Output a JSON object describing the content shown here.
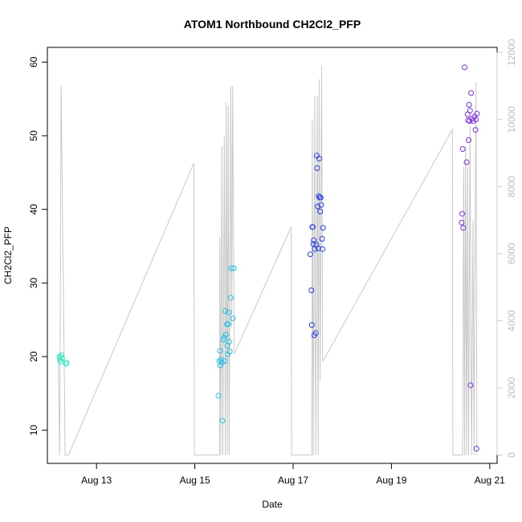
{
  "chart_data": {
    "type": "scatter",
    "title": "ATOM1 Northbound CH2Cl2_PFP",
    "xlabel": "Date",
    "ylabel": "CH2Cl2_PFP",
    "x_range_days": [
      12.0,
      21.15
    ],
    "xlim": [
      "Aug 12",
      "Aug 21"
    ],
    "x_ticks": [
      {
        "label": "Aug 13",
        "day": 13
      },
      {
        "label": "Aug 15",
        "day": 15
      },
      {
        "label": "Aug 17",
        "day": 17
      },
      {
        "label": "Aug 19",
        "day": 19
      },
      {
        "label": "Aug 21",
        "day": 21
      }
    ],
    "ylim": [
      5.5,
      62
    ],
    "y_ticks": [
      10,
      20,
      30,
      40,
      50,
      60
    ],
    "y2lim": [
      -250,
      12150
    ],
    "y2_ticks": [
      0,
      2000,
      4000,
      6000,
      8000,
      10000,
      12000
    ],
    "y2_color": "#c8c8c8",
    "grid": false,
    "legend": "none",
    "series": [
      {
        "marker": "open-circle",
        "color": "#2ee6c0",
        "points": [
          [
            12.25,
            20.0
          ],
          [
            12.26,
            19.6
          ],
          [
            12.27,
            19.3
          ],
          [
            12.29,
            20.2
          ],
          [
            12.3,
            19.8
          ],
          [
            12.38,
            19.0
          ],
          [
            12.39,
            19.2
          ]
        ]
      },
      {
        "marker": "open-circle",
        "color": "#22c0e6",
        "points": [
          [
            15.48,
            14.7
          ],
          [
            15.5,
            19.4
          ],
          [
            15.51,
            20.8
          ],
          [
            15.52,
            18.8
          ],
          [
            15.53,
            19.6
          ],
          [
            15.55,
            19.2
          ],
          [
            15.56,
            11.3
          ],
          [
            15.58,
            22.3
          ],
          [
            15.6,
            22.6
          ],
          [
            15.61,
            19.4
          ],
          [
            15.62,
            26.2
          ],
          [
            15.63,
            23.0
          ],
          [
            15.65,
            24.4
          ],
          [
            15.66,
            21.5
          ],
          [
            15.67,
            20.3
          ],
          [
            15.68,
            24.4
          ],
          [
            15.69,
            26.0
          ],
          [
            15.7,
            22.0
          ],
          [
            15.71,
            20.7
          ],
          [
            15.73,
            28.0
          ],
          [
            15.74,
            32.0
          ],
          [
            15.77,
            25.2
          ],
          [
            15.79,
            32.0
          ]
        ]
      },
      {
        "marker": "open-circle",
        "color": "#2a40e6",
        "points": [
          [
            17.35,
            33.9
          ],
          [
            17.37,
            29.0
          ],
          [
            17.38,
            24.3
          ],
          [
            17.39,
            37.6
          ],
          [
            17.4,
            37.6
          ],
          [
            17.41,
            35.3
          ],
          [
            17.42,
            35.8
          ],
          [
            17.43,
            22.9
          ],
          [
            17.44,
            34.6
          ],
          [
            17.46,
            23.2
          ],
          [
            17.47,
            35.2
          ],
          [
            17.48,
            47.3
          ],
          [
            17.49,
            45.6
          ],
          [
            17.5,
            40.4
          ],
          [
            17.51,
            34.7
          ],
          [
            17.52,
            41.8
          ],
          [
            17.53,
            46.9
          ],
          [
            17.54,
            41.6
          ],
          [
            17.55,
            39.7
          ],
          [
            17.56,
            41.6
          ],
          [
            17.57,
            40.6
          ],
          [
            17.59,
            36.0
          ],
          [
            17.6,
            34.6
          ],
          [
            17.61,
            37.5
          ]
        ]
      },
      {
        "marker": "open-circle",
        "color": "#7a2ee6",
        "points": [
          [
            20.43,
            38.2
          ],
          [
            20.44,
            39.4
          ],
          [
            20.45,
            48.2
          ],
          [
            20.46,
            37.5
          ],
          [
            20.49,
            59.3
          ],
          [
            20.53,
            46.4
          ],
          [
            20.55,
            52.9
          ],
          [
            20.56,
            52.1
          ],
          [
            20.57,
            49.4
          ],
          [
            20.58,
            54.2
          ],
          [
            20.59,
            52.0
          ],
          [
            20.6,
            53.4
          ],
          [
            20.61,
            16.1
          ],
          [
            20.62,
            55.8
          ],
          [
            20.64,
            52.3
          ],
          [
            20.66,
            52.0
          ],
          [
            20.69,
            52.6
          ],
          [
            20.71,
            50.8
          ],
          [
            20.72,
            52.2
          ],
          [
            20.73,
            7.5
          ],
          [
            20.74,
            53.0
          ]
        ]
      }
    ],
    "secondary_series": {
      "color": "#c8c8c8",
      "axis": "right",
      "points": [
        [
          12.22,
          3000
        ],
        [
          12.25,
          0
        ],
        [
          12.28,
          11000
        ],
        [
          12.35,
          1800
        ],
        [
          12.36,
          0
        ],
        [
          12.38,
          0
        ],
        [
          12.43,
          0
        ],
        [
          14.98,
          8700
        ],
        [
          14.99,
          0
        ],
        [
          15.5,
          0
        ],
        [
          15.51,
          6500
        ],
        [
          15.53,
          0
        ],
        [
          15.55,
          9200
        ],
        [
          15.57,
          0
        ],
        [
          15.6,
          9500
        ],
        [
          15.62,
          0
        ],
        [
          15.64,
          10500
        ],
        [
          15.66,
          0
        ],
        [
          15.68,
          10400
        ],
        [
          15.7,
          0
        ],
        [
          15.73,
          11000
        ],
        [
          15.75,
          3800
        ],
        [
          15.77,
          11000
        ],
        [
          15.8,
          3000
        ],
        [
          16.96,
          6800
        ],
        [
          16.97,
          0
        ],
        [
          17.38,
          0
        ],
        [
          17.39,
          10000
        ],
        [
          17.41,
          0
        ],
        [
          17.44,
          10700
        ],
        [
          17.46,
          0
        ],
        [
          17.49,
          10700
        ],
        [
          17.51,
          0
        ],
        [
          17.53,
          11200
        ],
        [
          17.55,
          2200
        ],
        [
          17.58,
          11600
        ],
        [
          17.6,
          2900
        ],
        [
          17.61,
          2800
        ],
        [
          20.24,
          9700
        ],
        [
          20.25,
          0
        ],
        [
          20.45,
          0
        ],
        [
          20.47,
          8600
        ],
        [
          20.49,
          0
        ],
        [
          20.51,
          9200
        ],
        [
          20.53,
          0
        ],
        [
          20.55,
          8600
        ],
        [
          20.57,
          0
        ],
        [
          20.6,
          9800
        ],
        [
          20.62,
          2300
        ],
        [
          20.63,
          0
        ],
        [
          20.66,
          7000
        ],
        [
          20.68,
          0
        ],
        [
          20.72,
          11100
        ],
        [
          20.74,
          0
        ]
      ]
    }
  }
}
